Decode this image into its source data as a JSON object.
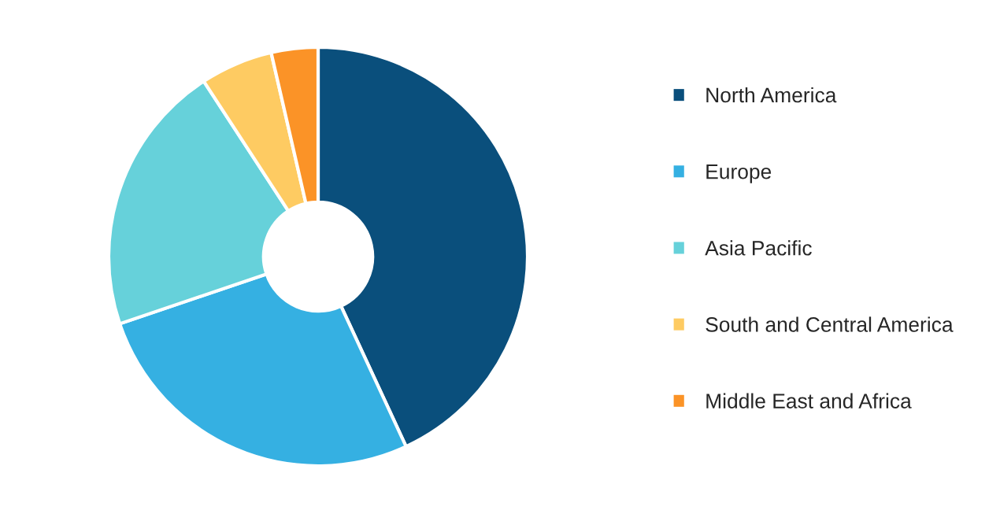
{
  "chart_data": {
    "type": "donut",
    "categories": [
      "North America",
      "Europe",
      "Asia Pacific",
      "South and Central America",
      "Middle East and Africa"
    ],
    "values": [
      43.1,
      26.7,
      21.0,
      5.6,
      3.6
    ],
    "colors": [
      "#0a4f7c",
      "#35b0e2",
      "#66d1da",
      "#fecb62",
      "#fb9327"
    ],
    "legend": "right"
  }
}
